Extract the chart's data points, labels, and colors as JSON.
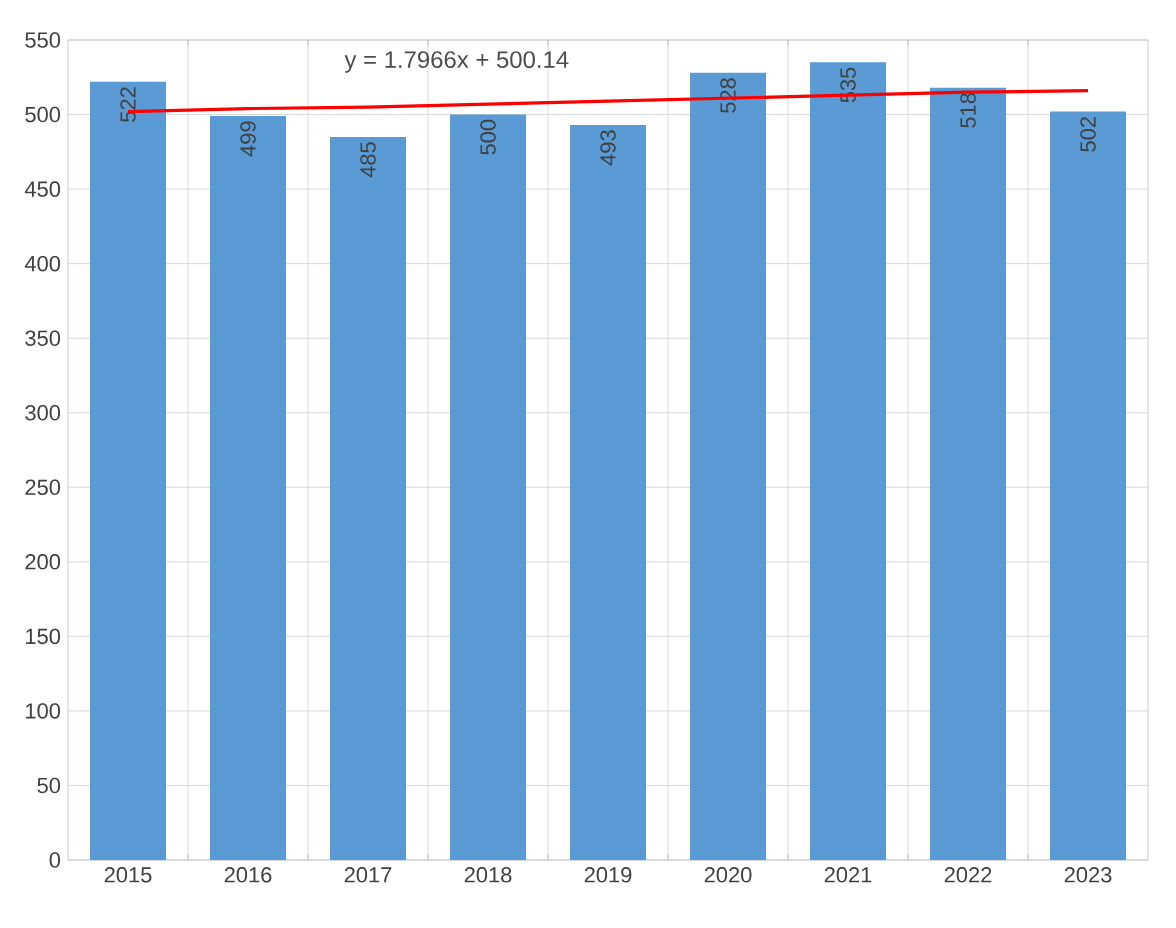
{
  "chart_data": {
    "type": "bar",
    "categories": [
      "2015",
      "2016",
      "2017",
      "2018",
      "2019",
      "2020",
      "2021",
      "2022",
      "2023"
    ],
    "series": [
      {
        "color": "#5b9bd5",
        "values": [
          522,
          499,
          485,
          500,
          493,
          528,
          535,
          518,
          502
        ],
        "value_labels": [
          "522",
          "499",
          "485",
          "500",
          "493",
          "528",
          "535",
          "518",
          "502"
        ]
      },
      {
        "type": "line",
        "color": "#ff0000",
        "values": [
          502,
          504,
          505,
          507,
          509,
          511,
          513,
          515,
          516
        ]
      }
    ],
    "annotations": [
      "y = 1.7966x + 500.14"
    ],
    "ylim": [
      0,
      550
    ],
    "yticks": [
      0,
      50,
      100,
      150,
      200,
      250,
      300,
      350,
      400,
      450,
      500,
      550
    ],
    "grid": true
  }
}
